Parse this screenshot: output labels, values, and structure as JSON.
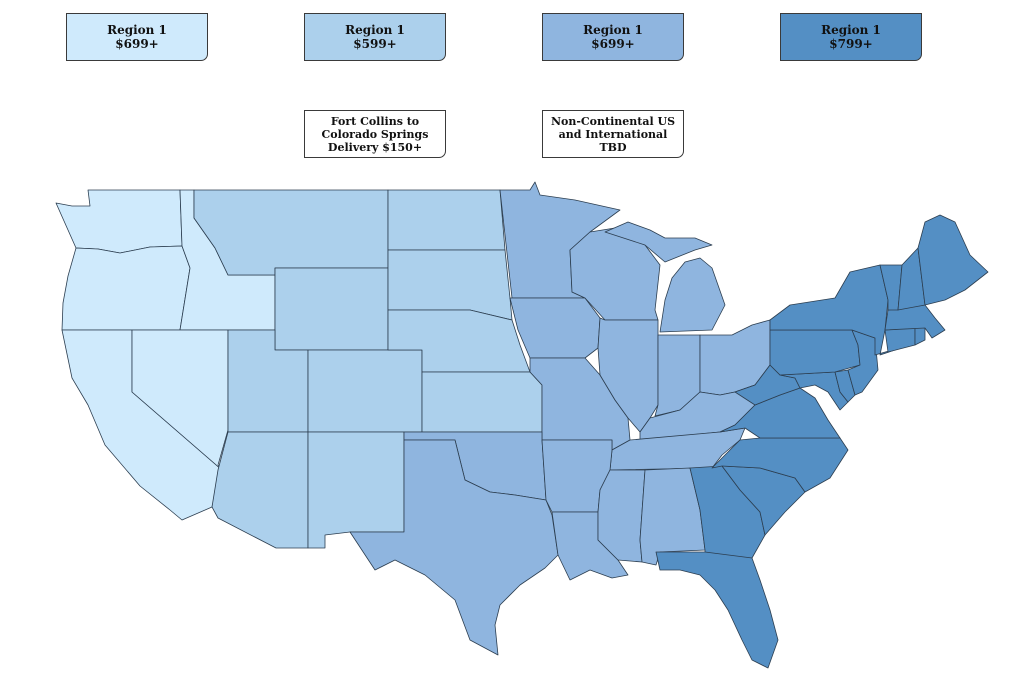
{
  "legend": [
    {
      "title": "Region 1",
      "price": "$699+",
      "color": "#cfeafc"
    },
    {
      "title": "Region 1",
      "price": "$599+",
      "color": "#acd0ec"
    },
    {
      "title": "Region 1",
      "price": "$699+",
      "color": "#8fb5df"
    },
    {
      "title": "Region 1",
      "price": "$799+",
      "color": "#548fc4"
    }
  ],
  "notes": {
    "fort_collins": "Fort Collins to Colorado Springs Delivery $150+",
    "non_continental": "Non-Continental US and International TBD"
  },
  "map": {
    "region_colors": {
      "r1": "#cfeafc",
      "r2": "#acd0ec",
      "r3": "#8fb5df",
      "r4": "#548fc4"
    }
  }
}
